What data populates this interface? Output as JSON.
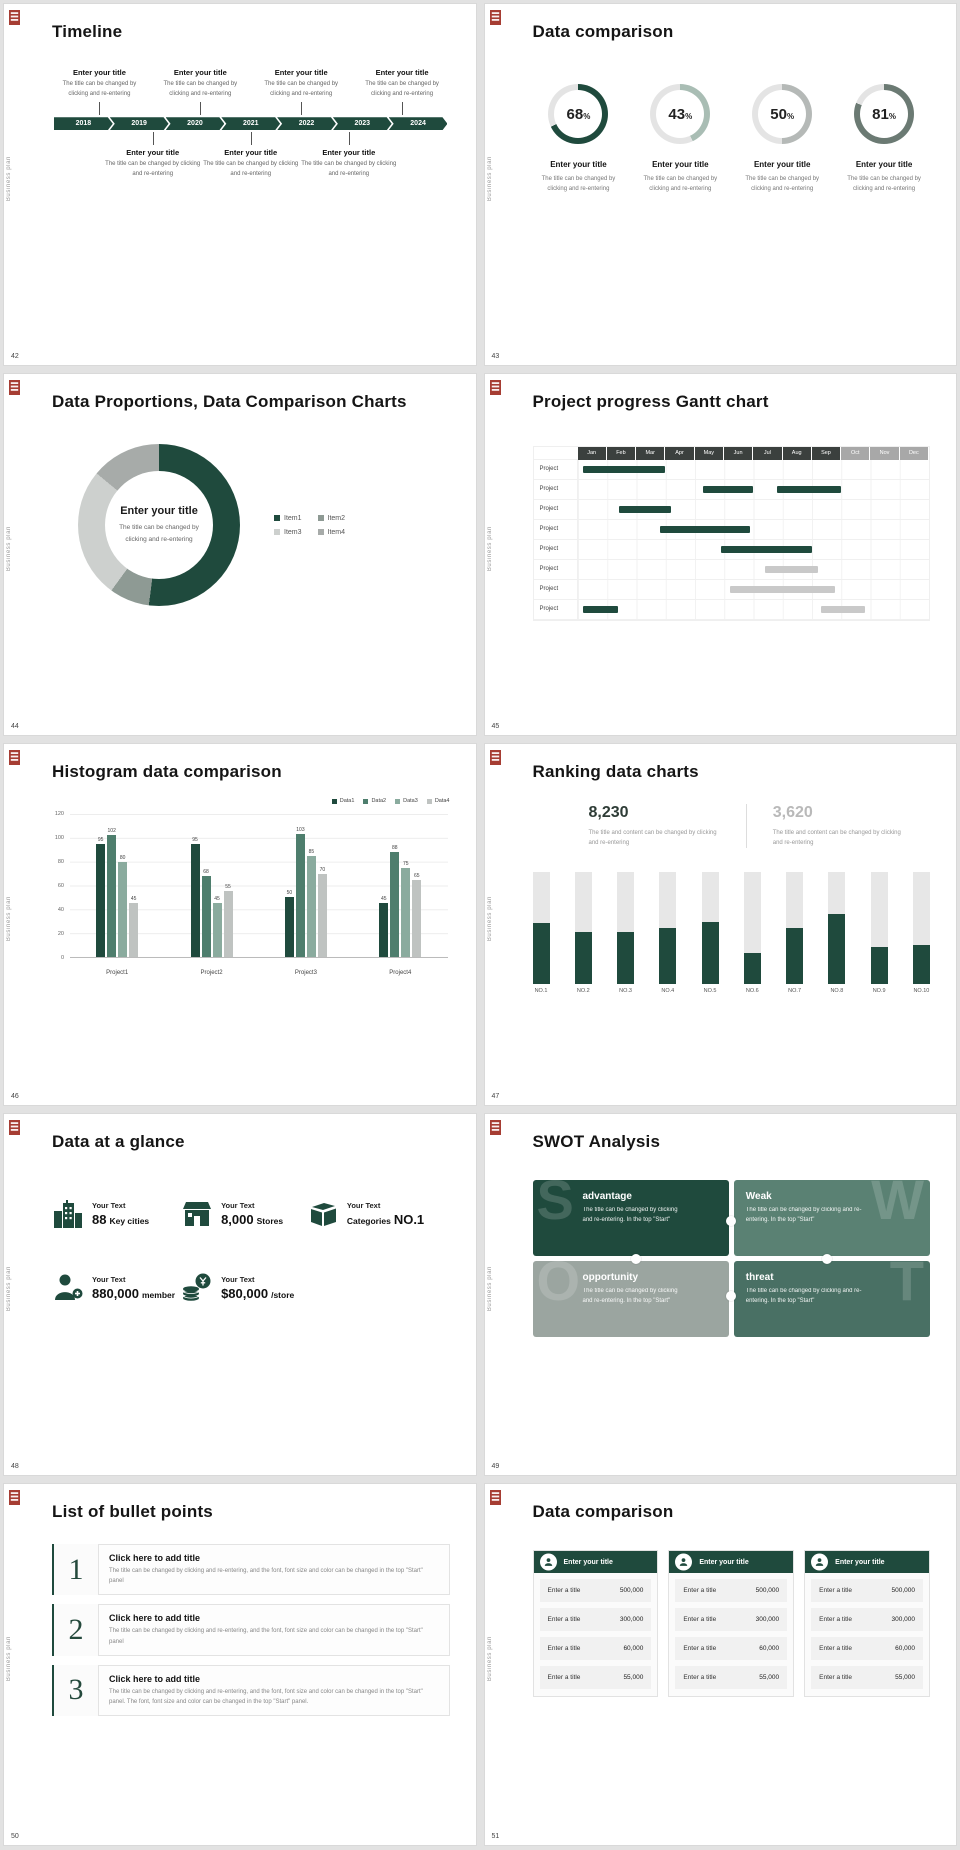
{
  "page": {
    "background": "#e8e8e8"
  },
  "common": {
    "side_label": "Business plan",
    "brand_color": "#1f4a3d"
  },
  "slides": [
    {
      "number": "42",
      "title": "Timeline",
      "timeline": {
        "years": [
          "2018",
          "2019",
          "2020",
          "2021",
          "2022",
          "2023",
          "2024"
        ],
        "top_entries": [
          {
            "title": "Enter your title",
            "desc": "The title can be changed by clicking and re-entering"
          },
          {
            "title": "Enter your title",
            "desc": "The title can be changed by clicking and re-entering"
          },
          {
            "title": "Enter your title",
            "desc": "The title can be changed by clicking and re-entering"
          },
          {
            "title": "Enter your title",
            "desc": "The title can be changed by clicking and re-entering"
          }
        ],
        "bottom_entries": [
          {
            "title": "Enter your title",
            "desc": "The title can be changed by clicking and re-entering"
          },
          {
            "title": "Enter your title",
            "desc": "The title can be changed by clicking and re-entering"
          },
          {
            "title": "Enter your title",
            "desc": "The title can be changed by clicking and re-entering"
          }
        ]
      }
    },
    {
      "number": "43",
      "title": "Data comparison",
      "rings": [
        {
          "value": "68",
          "unit": "%",
          "percent": 68,
          "color": "#1f4a3d",
          "title": "Enter your title",
          "desc": "The title can be changed by clicking and re-entering"
        },
        {
          "value": "43",
          "unit": "%",
          "percent": 43,
          "color": "#a9bdb4",
          "title": "Enter your title",
          "desc": "The title can be changed by clicking and re-entering"
        },
        {
          "value": "50",
          "unit": "%",
          "percent": 50,
          "color": "#b5b9b7",
          "title": "Enter your title",
          "desc": "The title can be changed by clicking and re-entering"
        },
        {
          "value": "81",
          "unit": "%",
          "percent": 81,
          "color": "#6b7a73",
          "title": "Enter your title",
          "desc": "The title can be changed by clicking and re-entering"
        }
      ]
    },
    {
      "number": "44",
      "title": "Data Proportions, Data Comparison Charts",
      "donut": {
        "center_title": "Enter your title",
        "center_desc": "The title can be changed by clicking and re-entering",
        "segments": [
          {
            "name": "Item1",
            "pct": 52,
            "color": "#1f4a3d"
          },
          {
            "name": "Item2",
            "pct": 8,
            "color": "#8e9a94"
          },
          {
            "name": "Item3",
            "pct": 26,
            "color": "#cdd0ce"
          },
          {
            "name": "Item4",
            "pct": 14,
            "color": "#a7aba9"
          }
        ]
      }
    },
    {
      "number": "45",
      "title": "Project progress Gantt chart",
      "gantt": {
        "months": [
          "Jan",
          "Feb",
          "Mar",
          "Apr",
          "May",
          "Jun",
          "Jul",
          "Aug",
          "Sep",
          "Oct",
          "Nov",
          "Dec"
        ],
        "dark_months": 9,
        "row_label": "Project",
        "rows": 8,
        "bars": [
          {
            "row": 0,
            "start": 0.2,
            "end": 3.0,
            "color": "#1f4a3d"
          },
          {
            "row": 1,
            "start": 4.3,
            "end": 6.0,
            "color": "#1f4a3d"
          },
          {
            "row": 1,
            "start": 6.8,
            "end": 9.0,
            "color": "#1f4a3d"
          },
          {
            "row": 2,
            "start": 1.4,
            "end": 3.2,
            "color": "#1f4a3d"
          },
          {
            "row": 3,
            "start": 2.8,
            "end": 5.9,
            "color": "#1f4a3d"
          },
          {
            "row": 4,
            "start": 4.9,
            "end": 8.0,
            "color": "#1f4a3d"
          },
          {
            "row": 5,
            "start": 6.4,
            "end": 8.2,
            "color": "#c9c9c9"
          },
          {
            "row": 6,
            "start": 5.2,
            "end": 8.8,
            "color": "#c9c9c9"
          },
          {
            "row": 7,
            "start": 0.2,
            "end": 1.4,
            "color": "#1f4a3d"
          },
          {
            "row": 7,
            "start": 8.3,
            "end": 9.8,
            "color": "#c9c9c9"
          }
        ]
      }
    },
    {
      "number": "46",
      "title": "Histogram data comparison",
      "chart": {
        "type": "bar",
        "ymax": 120,
        "yticks": [
          0,
          20,
          40,
          60,
          80,
          100,
          120
        ],
        "categories": [
          "Project1",
          "Project2",
          "Project3",
          "Project4"
        ],
        "series": [
          {
            "name": "Data1",
            "color": "#1f4a3d",
            "values": [
              95,
              95,
              50,
              45
            ]
          },
          {
            "name": "Data2",
            "color": "#4e7e6d",
            "values": [
              102,
              68,
              103,
              88
            ]
          },
          {
            "name": "Data3",
            "color": "#8aab9e",
            "values": [
              80,
              45,
              85,
              75
            ]
          },
          {
            "name": "Data4",
            "color": "#bfc3c1",
            "values": [
              45,
              55,
              70,
              65
            ]
          }
        ]
      }
    },
    {
      "number": "47",
      "title": "Ranking data charts",
      "stats": [
        {
          "value": "8,230",
          "desc": "The title and content can be changed by clicking and re-entering"
        },
        {
          "value": "3,620",
          "desc": "The title and content can be changed by clicking and re-entering"
        }
      ],
      "bars": {
        "labels": [
          "NO.1",
          "NO.2",
          "NO.3",
          "NO.4",
          "NO.5",
          "NO.6",
          "NO.7",
          "NO.8",
          "NO.9",
          "NO.10"
        ],
        "values": [
          55,
          47,
          47,
          50,
          56,
          28,
          50,
          63,
          33,
          35
        ],
        "fill": "#1f4a3d",
        "track": "#e7e7e7"
      }
    },
    {
      "number": "48",
      "title": "Data at a glance",
      "stats": [
        {
          "icon": "buildings-icon",
          "label": "Your Text",
          "prefix": "",
          "value": "88",
          "unit": "Key cities"
        },
        {
          "icon": "store-icon",
          "label": "Your Text",
          "prefix": "",
          "value": "8,000",
          "unit": "Stores"
        },
        {
          "icon": "category-box-icon",
          "label": "Your Text",
          "prefix": "Categories",
          "value": "NO.1",
          "unit": ""
        },
        {
          "icon": "member-icon",
          "label": "Your Text",
          "prefix": "",
          "value": "880,000",
          "unit": "member"
        },
        {
          "icon": "coins-icon",
          "label": "Your Text",
          "prefix": "",
          "value": "$80,000",
          "unit": "/store"
        }
      ]
    },
    {
      "number": "49",
      "title": "SWOT Analysis",
      "tiles": [
        {
          "letter": "S",
          "letter_side": "left",
          "title": "advantage",
          "color": "#1f4a3d",
          "desc": "The title can be changed by clicking and re-entering. In the top \"Start\""
        },
        {
          "letter": "W",
          "letter_side": "right",
          "title": "Weak",
          "color": "#5a8173",
          "desc": "The title can be changed by clicking and re-entering. In the top \"Start\""
        },
        {
          "letter": "O",
          "letter_side": "left",
          "title": "opportunity",
          "color": "#9ba5a0",
          "desc": "The title can be changed by clicking and re-entering. In the top \"Start\""
        },
        {
          "letter": "T",
          "letter_side": "right",
          "title": "threat",
          "color": "#497064",
          "desc": "The title can be changed by clicking and re-entering. In the top \"Start\""
        }
      ]
    },
    {
      "number": "50",
      "title": "List of bullet points",
      "items": [
        {
          "num": "1",
          "title": "Click here to add title",
          "desc": "The title can be changed by clicking and re-entering, and the font, font size and color can be changed in the top \"Start\" panel"
        },
        {
          "num": "2",
          "title": "Click here to add title",
          "desc": "The title can be changed by clicking and re-entering, and the font, font size and color can be changed in the top \"Start\" panel"
        },
        {
          "num": "3",
          "title": "Click here to add title",
          "desc": "The title can be changed by clicking and re-entering, and the font, font size and color can be changed in the top \"Start\" panel. The font, font size and color can be changed in the top \"Start\" panel."
        }
      ]
    },
    {
      "number": "51",
      "title": "Data comparison",
      "tables": [
        {
          "header": "Enter your title",
          "rows": [
            {
              "label": "Enter a title",
              "value": "500,000"
            },
            {
              "label": "Enter a title",
              "value": "300,000"
            },
            {
              "label": "Enter a title",
              "value": "60,000"
            },
            {
              "label": "Enter a title",
              "value": "55,000"
            }
          ]
        },
        {
          "header": "Enter your title",
          "rows": [
            {
              "label": "Enter a title",
              "value": "500,000"
            },
            {
              "label": "Enter a title",
              "value": "300,000"
            },
            {
              "label": "Enter a title",
              "value": "60,000"
            },
            {
              "label": "Enter a title",
              "value": "55,000"
            }
          ]
        },
        {
          "header": "Enter your title",
          "rows": [
            {
              "label": "Enter a title",
              "value": "500,000"
            },
            {
              "label": "Enter a title",
              "value": "300,000"
            },
            {
              "label": "Enter a title",
              "value": "60,000"
            },
            {
              "label": "Enter a title",
              "value": "55,000"
            }
          ]
        }
      ]
    }
  ]
}
